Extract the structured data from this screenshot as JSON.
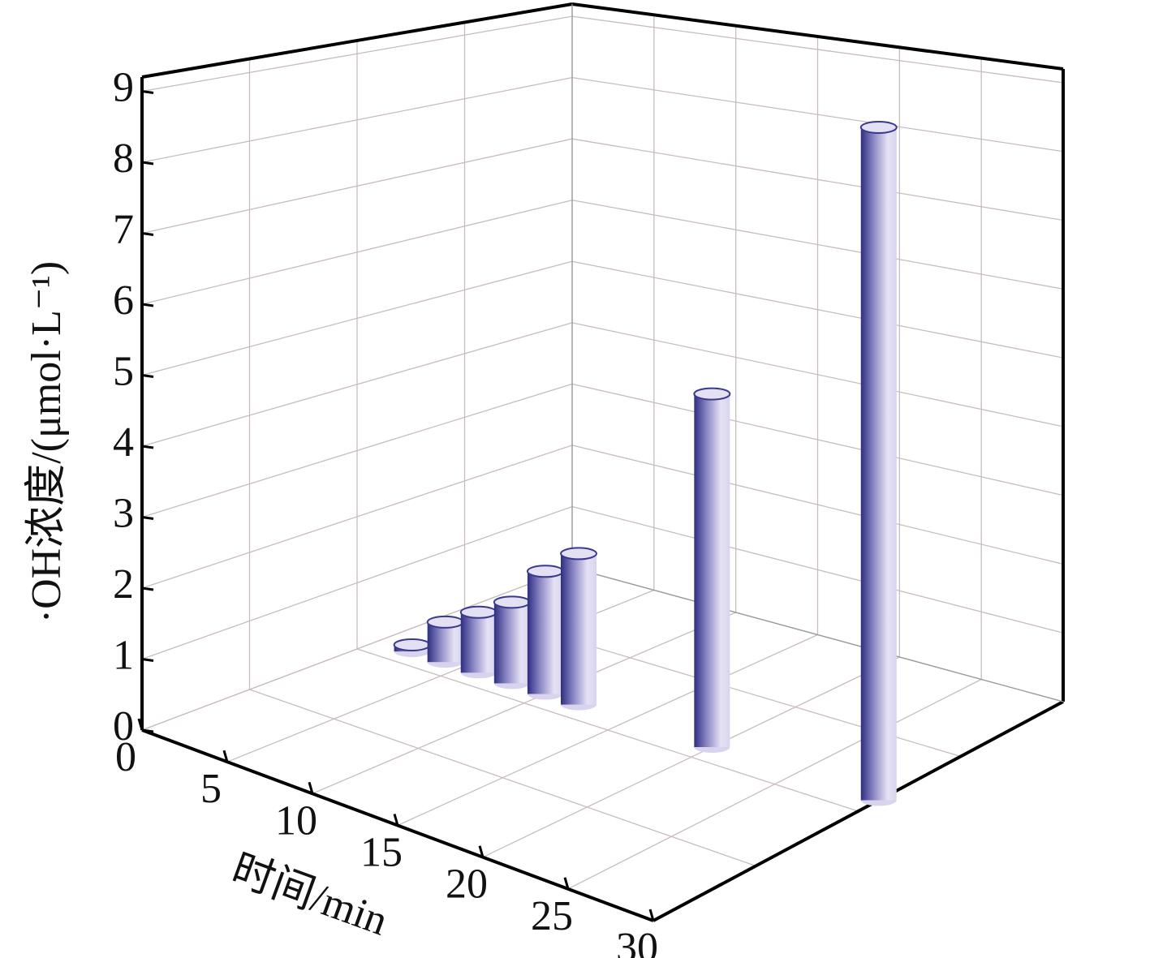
{
  "chart_data": {
    "type": "bar3d",
    "x_label": "时间/min",
    "y_label": "·OH浓度/(μmol·L⁻¹)",
    "x": [
      2,
      4,
      6,
      8,
      10,
      12,
      20,
      30
    ],
    "values": [
      0.1,
      0.6,
      0.9,
      1.2,
      1.8,
      2.2,
      5.0,
      9.2
    ],
    "color": "#3a3a8c",
    "xlim": [
      0,
      30
    ],
    "xticks": [
      0,
      5,
      10,
      15,
      20,
      25,
      30
    ],
    "ylim": [
      0,
      9.2
    ],
    "yticks": [
      0,
      1,
      2,
      3,
      4,
      5,
      6,
      7,
      8,
      9
    ],
    "grid": true
  }
}
